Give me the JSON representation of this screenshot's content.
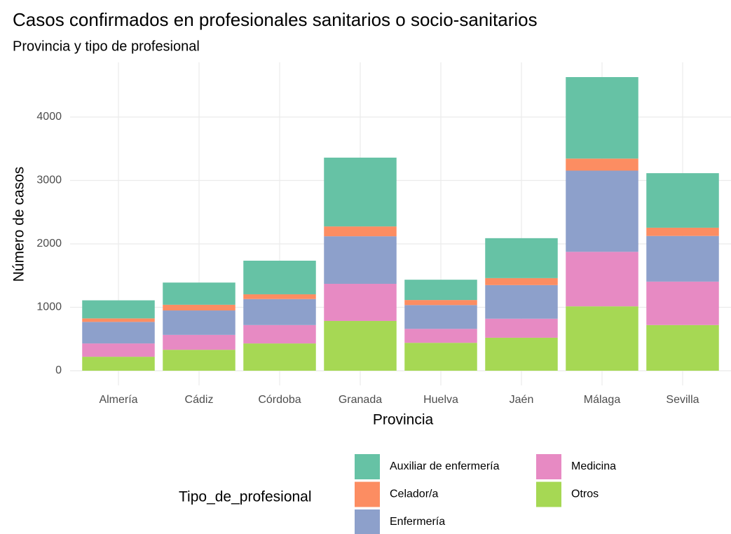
{
  "chart_data": {
    "type": "stacked_bar",
    "title": "Casos confirmados en profesionales sanitarios o socio-sanitarios",
    "subtitle": "Provincia y tipo de profesional",
    "x_label": "Provincia",
    "y_label": "Número de casos",
    "legend_title": "Tipo_de_profesional",
    "categories": [
      "Almería",
      "Cádiz",
      "Córdoba",
      "Granada",
      "Huelva",
      "Jaén",
      "Málaga",
      "Sevilla"
    ],
    "series": [
      {
        "name": "Otros",
        "color": "#a6d854",
        "values": [
          220,
          330,
          430,
          785,
          440,
          520,
          1015,
          720
        ]
      },
      {
        "name": "Medicina",
        "color": "#e78ac3",
        "values": [
          210,
          235,
          290,
          585,
          220,
          300,
          860,
          685
        ]
      },
      {
        "name": "Enfermería",
        "color": "#8da0cb",
        "values": [
          340,
          385,
          410,
          750,
          375,
          530,
          1280,
          720
        ]
      },
      {
        "name": "Celador/a",
        "color": "#fc8d62",
        "values": [
          55,
          90,
          75,
          155,
          80,
          110,
          190,
          130
        ]
      },
      {
        "name": "Auxiliar de enfermería",
        "color": "#66c2a5",
        "values": [
          285,
          350,
          530,
          1085,
          320,
          630,
          1285,
          860
        ]
      }
    ],
    "legend_order": [
      4,
      3,
      2,
      1,
      0
    ],
    "ylim": [
      -232,
      4862
    ],
    "yticks": [
      0,
      1000,
      2000,
      3000,
      4000
    ],
    "grid": true
  }
}
